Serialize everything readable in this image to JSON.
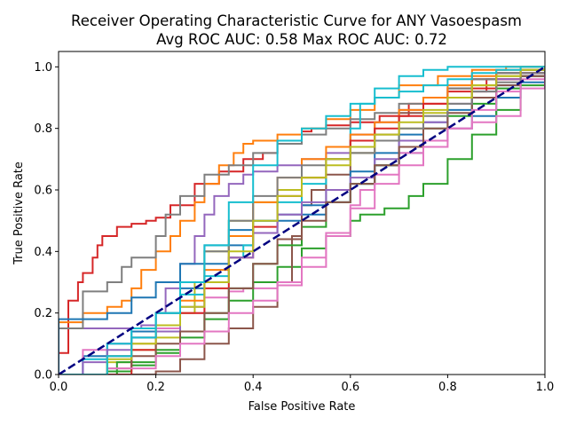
{
  "chart_data": {
    "type": "line",
    "title": "Receiver Operating Characteristic Curve for ANY Vasoespasm",
    "subtitle": "Avg ROC AUC: 0.58  Max ROC AUC: 0.72",
    "xlabel": "False Positive Rate",
    "ylabel": "True Positive Rate",
    "xlim": [
      0,
      1.0
    ],
    "ylim": [
      0,
      1.05
    ],
    "xticks": [
      "0.0",
      "0.2",
      "0.4",
      "0.6",
      "0.8",
      "1.0"
    ],
    "yticks": [
      "0.0",
      "0.2",
      "0.4",
      "0.6",
      "0.8",
      "1.0"
    ],
    "grid": false,
    "legend": "none",
    "reference_line": {
      "x": [
        0,
        1
      ],
      "y": [
        0,
        1
      ],
      "color": "#000080",
      "style": "dashed"
    },
    "series": [
      {
        "color": "#d62728",
        "x": [
          0,
          0,
          0.02,
          0.04,
          0.05,
          0.07,
          0.08,
          0.09,
          0.12,
          0.15,
          0.18,
          0.2,
          0.23,
          0.28,
          0.33,
          0.38,
          0.42,
          0.45,
          0.5,
          0.52,
          0.55,
          0.6,
          0.66,
          0.72,
          0.8,
          0.88,
          0.95,
          1.0
        ],
        "y": [
          0,
          0.07,
          0.24,
          0.3,
          0.33,
          0.38,
          0.42,
          0.45,
          0.48,
          0.49,
          0.5,
          0.51,
          0.55,
          0.62,
          0.66,
          0.7,
          0.72,
          0.76,
          0.79,
          0.8,
          0.81,
          0.82,
          0.84,
          0.88,
          0.92,
          0.96,
          0.98,
          1.0
        ]
      },
      {
        "color": "#ff7f0e",
        "x": [
          0,
          0,
          0.05,
          0.1,
          0.13,
          0.15,
          0.17,
          0.2,
          0.23,
          0.25,
          0.28,
          0.3,
          0.33,
          0.36,
          0.38,
          0.4,
          0.45,
          0.5,
          0.55,
          0.6,
          0.65,
          0.7,
          0.78,
          0.85,
          0.92,
          1.0
        ],
        "y": [
          0,
          0.17,
          0.2,
          0.22,
          0.24,
          0.28,
          0.34,
          0.4,
          0.45,
          0.5,
          0.56,
          0.62,
          0.68,
          0.72,
          0.75,
          0.76,
          0.78,
          0.8,
          0.83,
          0.86,
          0.9,
          0.94,
          0.97,
          0.99,
          1.0,
          1.0
        ]
      },
      {
        "color": "#1f77b4",
        "x": [
          0,
          0.05,
          0.1,
          0.15,
          0.2,
          0.25,
          0.3,
          0.35,
          0.4,
          0.45,
          0.5,
          0.55,
          0.6,
          0.65,
          0.7,
          0.75,
          0.8,
          0.85,
          0.9,
          0.95,
          1.0
        ],
        "y": [
          0,
          0.06,
          0.1,
          0.14,
          0.2,
          0.28,
          0.36,
          0.42,
          0.46,
          0.5,
          0.52,
          0.56,
          0.62,
          0.68,
          0.72,
          0.76,
          0.8,
          0.84,
          0.9,
          0.95,
          1.0
        ]
      },
      {
        "color": "#2ca02c",
        "x": [
          0,
          0.1,
          0.15,
          0.2,
          0.25,
          0.3,
          0.35,
          0.4,
          0.45,
          0.5,
          0.55,
          0.6,
          0.62,
          0.67,
          0.7,
          0.72,
          0.75,
          0.8,
          0.85,
          0.9,
          0.95,
          1.0
        ],
        "y": [
          0,
          0.01,
          0.03,
          0.07,
          0.12,
          0.18,
          0.24,
          0.3,
          0.35,
          0.41,
          0.45,
          0.5,
          0.52,
          0.54,
          0.54,
          0.58,
          0.62,
          0.7,
          0.78,
          0.86,
          0.94,
          1.0
        ]
      },
      {
        "color": "#9467bd",
        "x": [
          0,
          0,
          0.1,
          0.17,
          0.2,
          0.22,
          0.25,
          0.28,
          0.3,
          0.32,
          0.35,
          0.38,
          0.4,
          0.45,
          0.5,
          0.55,
          0.6,
          0.65,
          0.7,
          0.75,
          0.8,
          0.85,
          0.9,
          0.95,
          1.0
        ],
        "y": [
          0,
          0.15,
          0.15,
          0.16,
          0.2,
          0.28,
          0.36,
          0.45,
          0.52,
          0.58,
          0.62,
          0.65,
          0.66,
          0.68,
          0.7,
          0.72,
          0.78,
          0.82,
          0.86,
          0.9,
          0.93,
          0.96,
          0.98,
          0.99,
          1.0
        ]
      },
      {
        "color": "#8c564b",
        "x": [
          0,
          0.2,
          0.25,
          0.3,
          0.35,
          0.4,
          0.45,
          0.48,
          0.5,
          0.52,
          0.55,
          0.6,
          0.65,
          0.7,
          0.75,
          0.8,
          0.85,
          0.9,
          0.95,
          1.0
        ],
        "y": [
          0,
          0.01,
          0.05,
          0.1,
          0.15,
          0.22,
          0.3,
          0.45,
          0.55,
          0.6,
          0.65,
          0.72,
          0.78,
          0.85,
          0.9,
          0.93,
          0.96,
          0.98,
          0.99,
          1.0
        ]
      },
      {
        "color": "#e377c2",
        "x": [
          0,
          0.05,
          0.1,
          0.15,
          0.2,
          0.25,
          0.3,
          0.35,
          0.38,
          0.4,
          0.45,
          0.5,
          0.55,
          0.6,
          0.62,
          0.65,
          0.7,
          0.75,
          0.8,
          0.85,
          0.9,
          0.95,
          1.0
        ],
        "y": [
          0,
          0.08,
          0.1,
          0.12,
          0.15,
          0.2,
          0.25,
          0.27,
          0.28,
          0.28,
          0.29,
          0.35,
          0.45,
          0.55,
          0.6,
          0.65,
          0.72,
          0.76,
          0.8,
          0.82,
          0.84,
          0.93,
          1.0
        ]
      },
      {
        "color": "#7f7f7f",
        "x": [
          0,
          0,
          0.05,
          0.1,
          0.13,
          0.15,
          0.18,
          0.2,
          0.22,
          0.25,
          0.3,
          0.35,
          0.4,
          0.45,
          0.5,
          0.55,
          0.6,
          0.65,
          0.7,
          0.75,
          0.8,
          0.85,
          0.9,
          0.95,
          1.0
        ],
        "y": [
          0,
          0.15,
          0.27,
          0.3,
          0.35,
          0.38,
          0.38,
          0.45,
          0.52,
          0.58,
          0.65,
          0.68,
          0.72,
          0.75,
          0.78,
          0.8,
          0.83,
          0.85,
          0.88,
          0.9,
          0.93,
          0.96,
          0.98,
          0.99,
          1.0
        ]
      },
      {
        "color": "#bcbd22",
        "x": [
          0,
          0.1,
          0.15,
          0.2,
          0.25,
          0.28,
          0.3,
          0.35,
          0.4,
          0.45,
          0.5,
          0.55,
          0.6,
          0.65,
          0.7,
          0.75,
          0.8,
          0.85,
          0.9,
          0.95,
          1.0
        ],
        "y": [
          0,
          0.04,
          0.08,
          0.12,
          0.2,
          0.3,
          0.4,
          0.5,
          0.56,
          0.6,
          0.64,
          0.68,
          0.72,
          0.76,
          0.8,
          0.85,
          0.9,
          0.94,
          0.97,
          0.99,
          1.0
        ]
      },
      {
        "color": "#17becf",
        "x": [
          0,
          0.05,
          0.1,
          0.15,
          0.2,
          0.25,
          0.3,
          0.35,
          0.38,
          0.4,
          0.45,
          0.5,
          0.55,
          0.6,
          0.62,
          0.65,
          0.7,
          0.75,
          0.8,
          0.85,
          0.9,
          0.95,
          1.0
        ],
        "y": [
          0,
          0.05,
          0.1,
          0.15,
          0.2,
          0.26,
          0.32,
          0.38,
          0.42,
          0.5,
          0.56,
          0.62,
          0.7,
          0.8,
          0.88,
          0.93,
          0.97,
          0.99,
          1.0,
          1.0,
          1.0,
          1.0,
          1.0
        ]
      },
      {
        "color": "#1f77b4",
        "x": [
          0,
          0,
          0.05,
          0.1,
          0.15,
          0.2,
          0.25,
          0.3,
          0.35,
          0.4,
          0.45,
          0.5,
          0.55,
          0.6,
          0.65,
          0.7,
          0.75,
          0.8,
          0.85,
          0.9,
          0.95,
          1.0
        ],
        "y": [
          0,
          0.18,
          0.18,
          0.2,
          0.25,
          0.3,
          0.36,
          0.42,
          0.47,
          0.5,
          0.52,
          0.55,
          0.6,
          0.66,
          0.72,
          0.78,
          0.82,
          0.86,
          0.9,
          0.94,
          0.97,
          1.0
        ]
      },
      {
        "color": "#ff7f0e",
        "x": [
          0,
          0.1,
          0.15,
          0.2,
          0.25,
          0.3,
          0.35,
          0.4,
          0.45,
          0.5,
          0.55,
          0.6,
          0.65,
          0.7,
          0.75,
          0.8,
          0.85,
          0.9,
          0.95,
          1.0
        ],
        "y": [
          0,
          0.06,
          0.1,
          0.16,
          0.24,
          0.34,
          0.45,
          0.56,
          0.64,
          0.7,
          0.74,
          0.78,
          0.82,
          0.86,
          0.9,
          0.94,
          0.97,
          0.99,
          1.0,
          1.0
        ]
      },
      {
        "color": "#2ca02c",
        "x": [
          0,
          0.12,
          0.2,
          0.25,
          0.3,
          0.35,
          0.4,
          0.45,
          0.5,
          0.55,
          0.6,
          0.65,
          0.7,
          0.75,
          0.8,
          0.85,
          0.9,
          0.95,
          1.0
        ],
        "y": [
          0,
          0.04,
          0.08,
          0.14,
          0.2,
          0.28,
          0.36,
          0.42,
          0.48,
          0.56,
          0.62,
          0.68,
          0.74,
          0.8,
          0.84,
          0.88,
          0.93,
          0.97,
          1.0
        ]
      },
      {
        "color": "#d62728",
        "x": [
          0,
          0.15,
          0.2,
          0.25,
          0.3,
          0.35,
          0.4,
          0.45,
          0.5,
          0.55,
          0.6,
          0.65,
          0.7,
          0.75,
          0.8,
          0.85,
          0.9,
          0.95,
          1.0
        ],
        "y": [
          0,
          0.08,
          0.14,
          0.2,
          0.28,
          0.38,
          0.48,
          0.58,
          0.64,
          0.7,
          0.76,
          0.8,
          0.84,
          0.88,
          0.9,
          0.93,
          0.96,
          0.98,
          1.0
        ]
      },
      {
        "color": "#9467bd",
        "x": [
          0,
          0.05,
          0.1,
          0.15,
          0.2,
          0.25,
          0.3,
          0.35,
          0.4,
          0.45,
          0.5,
          0.55,
          0.6,
          0.65,
          0.7,
          0.75,
          0.8,
          0.85,
          0.9,
          0.95,
          1.0
        ],
        "y": [
          0,
          0.04,
          0.08,
          0.12,
          0.14,
          0.22,
          0.3,
          0.38,
          0.46,
          0.52,
          0.56,
          0.6,
          0.64,
          0.7,
          0.76,
          0.82,
          0.88,
          0.92,
          0.96,
          0.98,
          1.0
        ]
      },
      {
        "color": "#8c564b",
        "x": [
          0,
          0.1,
          0.15,
          0.2,
          0.25,
          0.3,
          0.35,
          0.4,
          0.45,
          0.5,
          0.55,
          0.6,
          0.65,
          0.7,
          0.75,
          0.8,
          0.85,
          0.9,
          0.95,
          1.0
        ],
        "y": [
          0,
          0.02,
          0.06,
          0.1,
          0.14,
          0.2,
          0.28,
          0.36,
          0.44,
          0.5,
          0.56,
          0.62,
          0.68,
          0.74,
          0.8,
          0.85,
          0.9,
          0.94,
          0.97,
          1.0
        ]
      },
      {
        "color": "#e377c2",
        "x": [
          0,
          0.1,
          0.2,
          0.25,
          0.3,
          0.35,
          0.4,
          0.45,
          0.5,
          0.55,
          0.6,
          0.65,
          0.7,
          0.75,
          0.8,
          0.85,
          0.9,
          0.95,
          1.0
        ],
        "y": [
          0,
          0.02,
          0.06,
          0.1,
          0.14,
          0.2,
          0.24,
          0.3,
          0.38,
          0.46,
          0.54,
          0.62,
          0.68,
          0.74,
          0.8,
          0.86,
          0.92,
          0.96,
          1.0
        ]
      },
      {
        "color": "#7f7f7f",
        "x": [
          0,
          0.1,
          0.15,
          0.2,
          0.25,
          0.3,
          0.35,
          0.4,
          0.45,
          0.5,
          0.55,
          0.6,
          0.65,
          0.7,
          0.75,
          0.8,
          0.85,
          0.9,
          0.95,
          1.0
        ],
        "y": [
          0,
          0.06,
          0.12,
          0.2,
          0.3,
          0.4,
          0.5,
          0.58,
          0.64,
          0.68,
          0.7,
          0.72,
          0.76,
          0.8,
          0.84,
          0.88,
          0.92,
          0.95,
          0.98,
          1.0
        ]
      },
      {
        "color": "#bcbd22",
        "x": [
          0,
          0.1,
          0.15,
          0.2,
          0.25,
          0.3,
          0.35,
          0.4,
          0.45,
          0.5,
          0.55,
          0.6,
          0.65,
          0.7,
          0.75,
          0.8,
          0.85,
          0.9,
          0.95,
          1.0
        ],
        "y": [
          0,
          0.05,
          0.1,
          0.16,
          0.22,
          0.3,
          0.4,
          0.5,
          0.58,
          0.64,
          0.7,
          0.74,
          0.78,
          0.82,
          0.86,
          0.9,
          0.94,
          0.97,
          0.99,
          1.0
        ]
      },
      {
        "color": "#17becf",
        "x": [
          0,
          0.1,
          0.15,
          0.2,
          0.25,
          0.3,
          0.35,
          0.4,
          0.45,
          0.5,
          0.55,
          0.6,
          0.65,
          0.7,
          0.75,
          0.8,
          0.85,
          0.9,
          0.95,
          1.0
        ],
        "y": [
          0,
          0.06,
          0.12,
          0.2,
          0.3,
          0.42,
          0.56,
          0.68,
          0.76,
          0.8,
          0.84,
          0.88,
          0.9,
          0.92,
          0.94,
          0.96,
          0.98,
          0.99,
          1.0,
          1.0
        ]
      }
    ]
  }
}
